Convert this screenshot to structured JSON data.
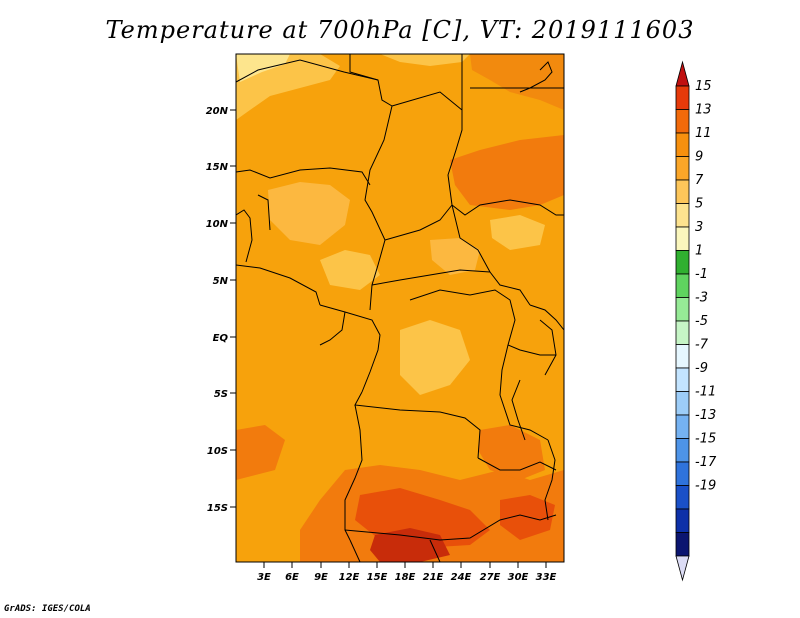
{
  "title": "Temperature at 700hPa [C], VT: 2019111603",
  "credit": "GrADS: IGES/COLA",
  "lat_ticks": [
    "20N",
    "15N",
    "10N",
    "5N",
    "EQ",
    "5S",
    "10S",
    "15S"
  ],
  "lon_ticks": [
    "3E",
    "6E",
    "9E",
    "12E",
    "15E",
    "18E",
    "21E",
    "24E",
    "27E",
    "30E",
    "33E"
  ],
  "colorbar": {
    "labels": [
      "15",
      "13",
      "11",
      "9",
      "7",
      "5",
      "3",
      "1",
      "-1",
      "-3",
      "-5",
      "-7",
      "-9",
      "-11",
      "-13",
      "-15",
      "-17",
      "-19"
    ],
    "colors": [
      "#c01010",
      "#e63a0a",
      "#f26a0a",
      "#f7900e",
      "#fba628",
      "#fdc65a",
      "#fde38f",
      "#fbf7bd",
      "#30b030",
      "#5fd35f",
      "#96ea96",
      "#c6f5c6",
      "#e6f7ff",
      "#c3e4ff",
      "#9dcdf8",
      "#75b2f2",
      "#4e94e8",
      "#2f73dc",
      "#1a50c8",
      "#0d30a8",
      "#0b1570",
      "#dcdcf5"
    ]
  },
  "legend_colors": {
    "base": "#f7a20c",
    "warm": "#f27b0d",
    "hot": "#e8500a",
    "hottest": "#c82c0a",
    "cool": "#fcc448",
    "coolest": "#fde58d"
  }
}
